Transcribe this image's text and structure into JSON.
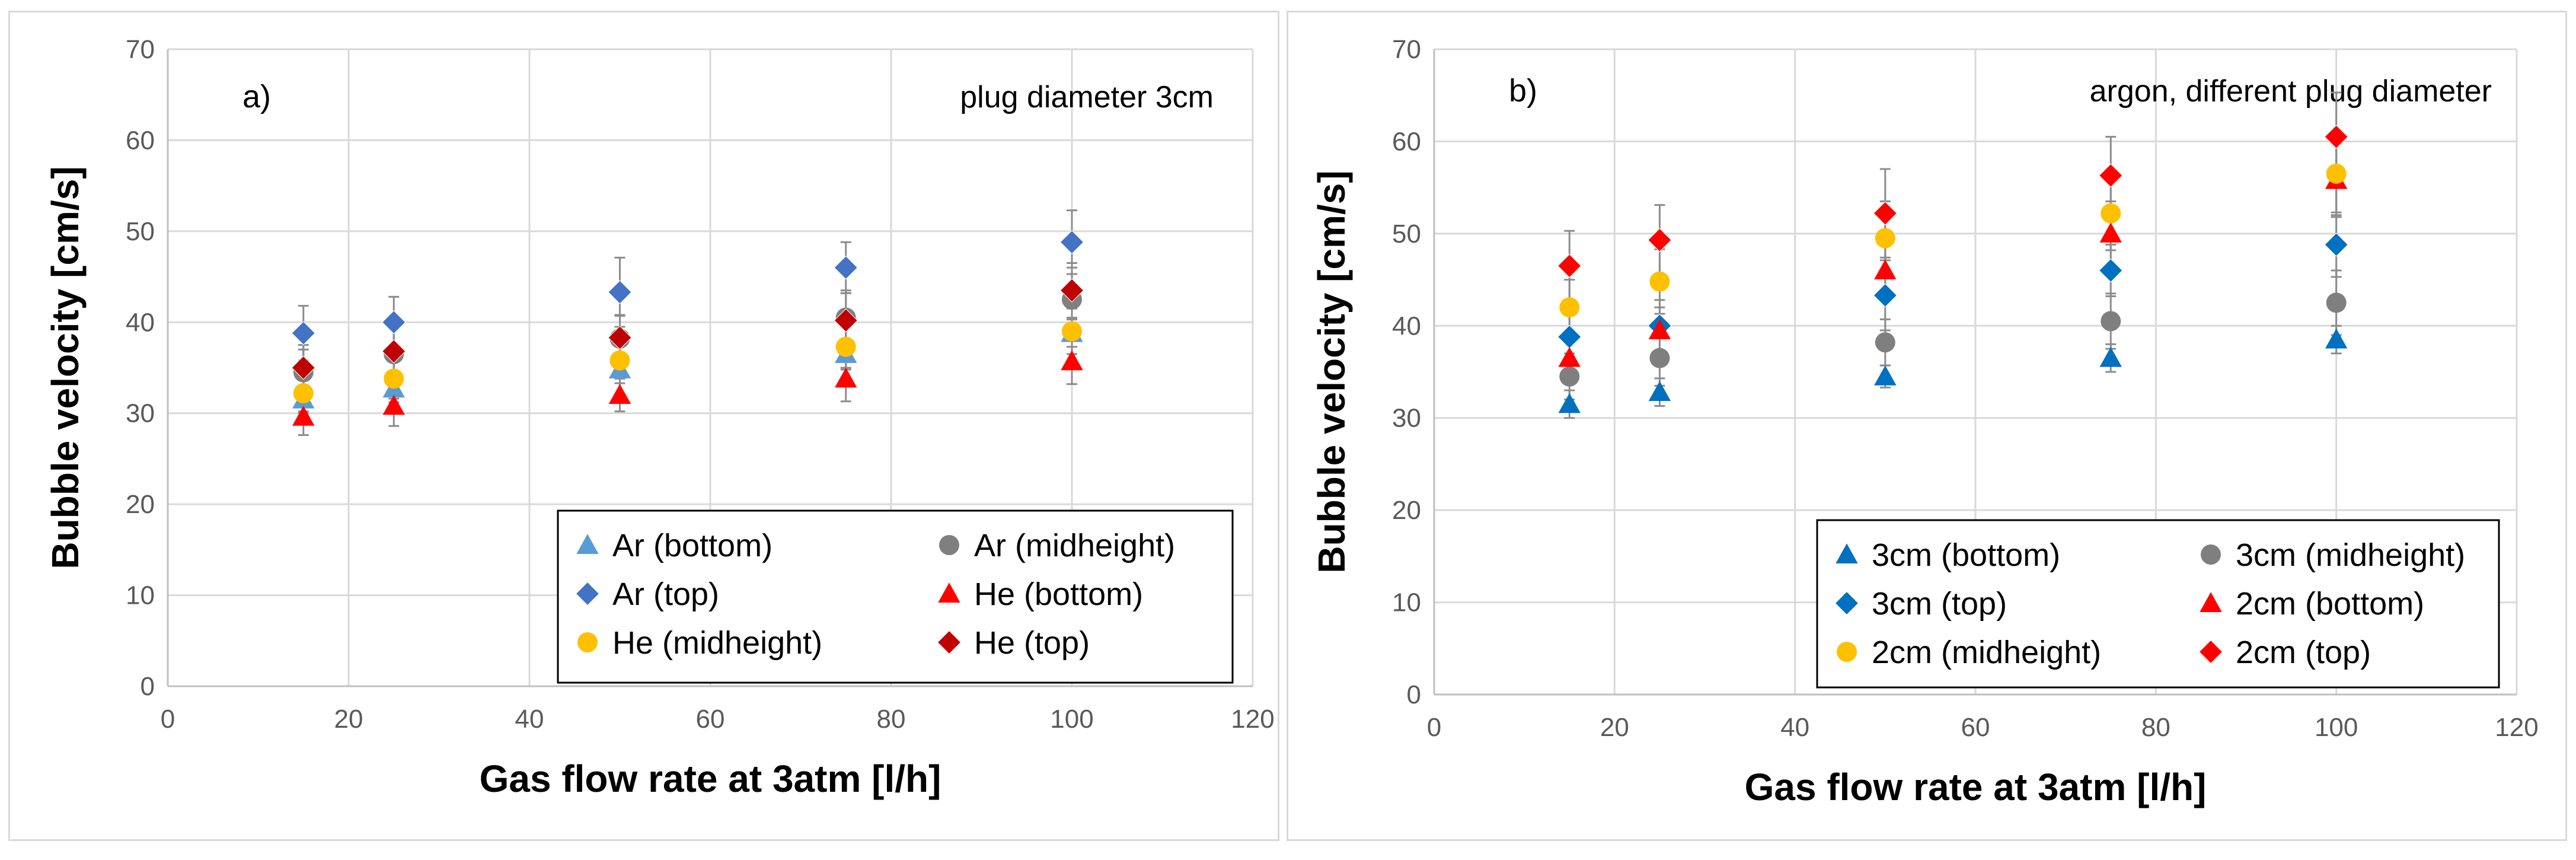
{
  "chart_data": [
    {
      "type": "scatter",
      "panel_label": "a)",
      "annotation": "plug diameter 3cm",
      "xlabel": "Gas flow rate at 3atm [l/h]",
      "ylabel": "Bubble velocity [cm/s]",
      "xlim": [
        0,
        120
      ],
      "ylim": [
        0,
        70
      ],
      "xticks": [
        "0",
        "20",
        "40",
        "60",
        "80",
        "100",
        "120"
      ],
      "yticks": [
        "0",
        "10",
        "20",
        "30",
        "40",
        "50",
        "60",
        "70"
      ],
      "grid": true,
      "legend_position": "bottom-right",
      "series": [
        {
          "name": "Ar (bottom)",
          "marker": "triangle",
          "color": "#5b9bd5",
          "x": [
            15,
            25,
            50,
            75,
            100
          ],
          "y": [
            31.5,
            32.7,
            34.8,
            36.5,
            38.8
          ],
          "err": [
            1.5,
            1.5,
            1.5,
            1.5,
            1.5
          ]
        },
        {
          "name": "Ar (midheight)",
          "marker": "circle",
          "color": "#7f7f7f",
          "x": [
            15,
            25,
            50,
            75,
            100
          ],
          "y": [
            34.5,
            36.5,
            38.2,
            40.5,
            42.5
          ],
          "err": [
            2.5,
            3.0,
            2.5,
            3.0,
            3.5
          ]
        },
        {
          "name": "Ar (top)",
          "marker": "diamond",
          "color": "#4472c4",
          "x": [
            15,
            25,
            50,
            75,
            100
          ],
          "y": [
            38.8,
            40.0,
            43.3,
            46.0,
            48.8
          ],
          "err": [
            3.0,
            2.8,
            3.8,
            2.8,
            3.5
          ]
        },
        {
          "name": "He (bottom)",
          "marker": "triangle",
          "color": "#ff0000",
          "x": [
            15,
            25,
            50,
            75,
            100
          ],
          "y": [
            29.6,
            30.8,
            32.0,
            33.8,
            35.7
          ],
          "err": [
            2.0,
            2.2,
            1.8,
            2.5,
            2.5
          ]
        },
        {
          "name": "He (midheight)",
          "marker": "circle",
          "color": "#ffc000",
          "x": [
            15,
            25,
            50,
            75,
            100
          ],
          "y": [
            32.2,
            33.8,
            35.8,
            37.3,
            39.0
          ],
          "err": [
            2.0,
            2.2,
            2.0,
            2.5,
            2.5
          ]
        },
        {
          "name": "He (top)",
          "marker": "diamond",
          "color": "#c00000",
          "x": [
            15,
            25,
            50,
            75,
            100
          ],
          "y": [
            35.0,
            36.8,
            38.3,
            40.2,
            43.5
          ],
          "err": [
            2.5,
            2.5,
            2.5,
            3.0,
            3.0
          ]
        }
      ]
    },
    {
      "type": "scatter",
      "panel_label": "b)",
      "annotation": "argon, different plug diameter",
      "xlabel": "Gas flow rate at 3atm [l/h]",
      "ylabel": "Bubble velocity [cm/s]",
      "xlim": [
        0,
        120
      ],
      "ylim": [
        0,
        70
      ],
      "xticks": [
        "0",
        "20",
        "40",
        "60",
        "80",
        "100",
        "120"
      ],
      "yticks": [
        "0",
        "10",
        "20",
        "30",
        "40",
        "50",
        "60",
        "70"
      ],
      "grid": true,
      "legend_position": "bottom-right",
      "series": [
        {
          "name": "3cm (bottom)",
          "marker": "triangle",
          "color": "#0070c0",
          "x": [
            15,
            25,
            50,
            75,
            100
          ],
          "y": [
            31.5,
            32.8,
            34.5,
            36.5,
            38.5
          ],
          "err": [
            1.5,
            1.5,
            1.2,
            1.5,
            1.5
          ]
        },
        {
          "name": "3cm (midheight)",
          "marker": "circle",
          "color": "#7f7f7f",
          "x": [
            15,
            25,
            50,
            75,
            100
          ],
          "y": [
            34.5,
            36.5,
            38.2,
            40.5,
            42.5
          ],
          "err": [
            2.5,
            3.0,
            2.5,
            3.0,
            3.5
          ]
        },
        {
          "name": "3cm (top)",
          "marker": "diamond",
          "color": "#0070c0",
          "x": [
            15,
            25,
            50,
            75,
            100
          ],
          "y": [
            38.8,
            40.0,
            43.3,
            46.0,
            48.8
          ],
          "err": [
            3.0,
            2.8,
            3.8,
            2.8,
            3.5
          ]
        },
        {
          "name": "2cm (bottom)",
          "marker": "triangle",
          "color": "#ff0000",
          "x": [
            15,
            25,
            50,
            75,
            100
          ],
          "y": [
            36.5,
            39.5,
            46.0,
            50.0,
            55.8
          ],
          "err": [
            2.0,
            2.5,
            3.0,
            3.5,
            4.0
          ]
        },
        {
          "name": "2cm (midheight)",
          "marker": "circle",
          "color": "#ffc000",
          "x": [
            15,
            25,
            50,
            75,
            100
          ],
          "y": [
            42.0,
            44.8,
            49.5,
            52.2,
            56.5
          ],
          "err": [
            3.0,
            3.5,
            4.0,
            4.0,
            4.5
          ]
        },
        {
          "name": "2cm (top)",
          "marker": "diamond",
          "color": "#ff0000",
          "x": [
            15,
            25,
            50,
            75,
            100
          ],
          "y": [
            46.5,
            49.3,
            52.2,
            56.3,
            60.5
          ],
          "err": [
            3.8,
            3.8,
            4.8,
            4.2,
            4.8
          ]
        }
      ]
    }
  ]
}
